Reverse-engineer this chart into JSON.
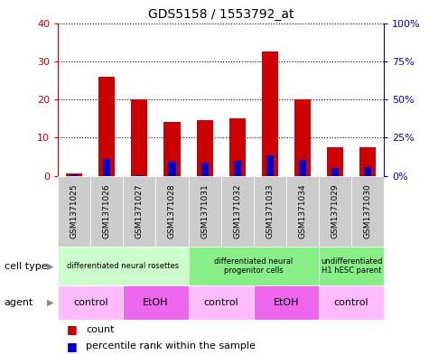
{
  "title": "GDS5158 / 1553792_at",
  "samples": [
    "GSM1371025",
    "GSM1371026",
    "GSM1371027",
    "GSM1371028",
    "GSM1371031",
    "GSM1371032",
    "GSM1371033",
    "GSM1371034",
    "GSM1371029",
    "GSM1371030"
  ],
  "count_values": [
    0.5,
    26,
    20,
    14,
    14.5,
    15,
    32.5,
    20,
    7.5,
    7.5
  ],
  "percentile_values": [
    1,
    11,
    0.5,
    9,
    8.5,
    9.5,
    13.5,
    10.5,
    5,
    5.5
  ],
  "ylim_left": [
    0,
    40
  ],
  "ylim_right": [
    0,
    100
  ],
  "yticks_left": [
    0,
    10,
    20,
    30,
    40
  ],
  "yticks_right": [
    0,
    25,
    50,
    75,
    100
  ],
  "ytick_labels_right": [
    "0%",
    "25%",
    "50%",
    "75%",
    "100%"
  ],
  "bar_color": "#cc0000",
  "percentile_color": "#0000cc",
  "bar_width": 0.5,
  "cell_type_groups": [
    {
      "label": "differentiated neural rosettes",
      "start": 0,
      "end": 4,
      "color": "#ccffcc"
    },
    {
      "label": "differentiated neural\nprogenitor cells",
      "start": 4,
      "end": 8,
      "color": "#88ee88"
    },
    {
      "label": "undifferentiated\nH1 hESC parent",
      "start": 8,
      "end": 10,
      "color": "#88ee88"
    }
  ],
  "agent_groups": [
    {
      "label": "control",
      "start": 0,
      "end": 2,
      "color": "#ffbbff"
    },
    {
      "label": "EtOH",
      "start": 2,
      "end": 4,
      "color": "#ee66ee"
    },
    {
      "label": "control",
      "start": 4,
      "end": 6,
      "color": "#ffbbff"
    },
    {
      "label": "EtOH",
      "start": 6,
      "end": 8,
      "color": "#ee66ee"
    },
    {
      "label": "control",
      "start": 8,
      "end": 10,
      "color": "#ffbbff"
    }
  ],
  "left_axis_color": "#cc0000",
  "right_axis_color": "#0000cc",
  "sample_bg_color": "#cccccc",
  "row_label_cell_type": "cell type",
  "row_label_agent": "agent",
  "legend_count_label": "count",
  "legend_pct_label": "percentile rank within the sample",
  "n_samples": 10
}
